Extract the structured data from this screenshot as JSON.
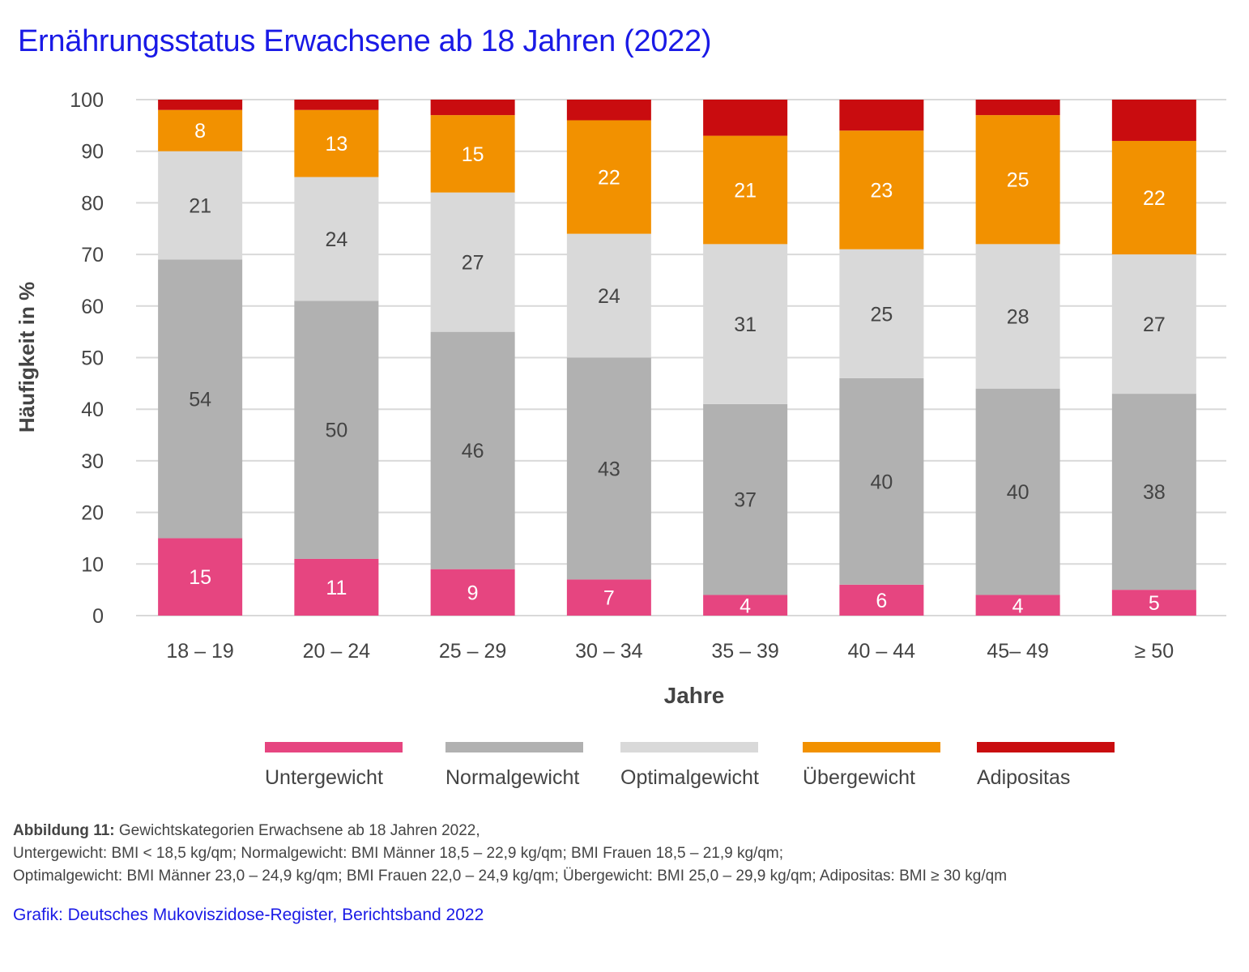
{
  "title": "Ernährungsstatus Erwachsene ab 18 Jahren (2022)",
  "caption": {
    "label": "Abbildung 11:",
    "line1": "Gewichtskategorien Erwachsene ab 18 Jahren 2022,",
    "line2": "Untergewicht: BMI < 18,5 kg/qm; Normalgewicht: BMI Männer 18,5 – 22,9 kg/qm; BMI Frauen 18,5 – 21,9 kg/qm;",
    "line3": "Optimalgewicht: BMI Männer 23,0 – 24,9 kg/qm; BMI Frauen 22,0 – 24,9 kg/qm; Übergewicht: BMI 25,0 – 29,9 kg/qm; Adipositas: BMI ≥ 30 kg/qm"
  },
  "credit": "Grafik: Deutsches Mukoviszidose-Register, Berichtsband 2022",
  "chart_data": {
    "type": "bar",
    "stacked": true,
    "title": "Ernährungsstatus Erwachsene ab 18 Jahren (2022)",
    "xlabel": "Jahre",
    "ylabel": "Häufigkeit in %",
    "ylim": [
      0,
      100
    ],
    "yticks": [
      0,
      10,
      20,
      30,
      40,
      50,
      60,
      70,
      80,
      90,
      100
    ],
    "grid": true,
    "legend_position": "bottom",
    "categories": [
      "18 – 19",
      "20 – 24",
      "25 – 29",
      "30 – 34",
      "35 – 39",
      "40 – 44",
      "45– 49",
      "≥ 50"
    ],
    "series": [
      {
        "name": "Untergewicht",
        "color": "#e64580",
        "label_color": "#ffffff",
        "values": [
          15,
          11,
          9,
          7,
          4,
          6,
          4,
          5
        ],
        "labeled": true
      },
      {
        "name": "Normalgewicht",
        "color": "#b1b1b1",
        "label_color": "#444444",
        "values": [
          54,
          50,
          46,
          43,
          37,
          40,
          40,
          38
        ],
        "labeled": true
      },
      {
        "name": "Optimalgewicht",
        "color": "#d9d9d9",
        "label_color": "#444444",
        "values": [
          21,
          24,
          27,
          24,
          31,
          25,
          28,
          27
        ],
        "labeled": true
      },
      {
        "name": "Übergewicht",
        "color": "#f29100",
        "label_color": "#ffffff",
        "values": [
          8,
          13,
          15,
          22,
          21,
          23,
          25,
          22
        ],
        "labeled": true
      },
      {
        "name": "Adipositas",
        "color": "#c90c0f",
        "label_color": "#ffffff",
        "values": [
          2,
          1,
          3,
          4,
          6,
          5,
          3,
          8
        ],
        "labeled": false
      }
    ]
  }
}
